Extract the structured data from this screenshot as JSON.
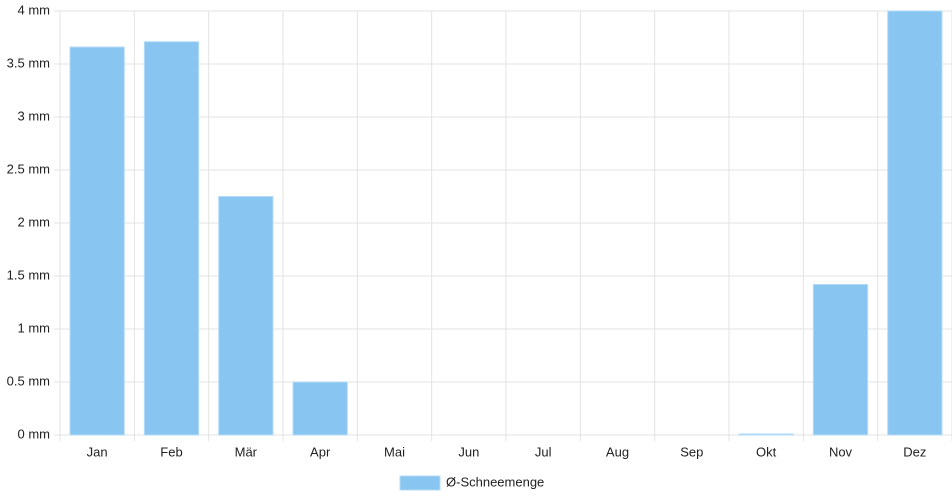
{
  "chart_data": {
    "type": "bar",
    "categories": [
      "Jan",
      "Feb",
      "Mär",
      "Apr",
      "Mai",
      "Jun",
      "Jul",
      "Aug",
      "Sep",
      "Okt",
      "Nov",
      "Dez"
    ],
    "series": [
      {
        "name": "Ø-Schneemenge",
        "color": "#88c5f1",
        "values": [
          3.66,
          3.71,
          2.25,
          0.5,
          0,
          0,
          0,
          0,
          0,
          0.01,
          1.42,
          4.0
        ]
      }
    ],
    "ylim": [
      0,
      4
    ],
    "yticks": [
      {
        "value": 0,
        "label": "0 mm"
      },
      {
        "value": 0.5,
        "label": "0.5 mm"
      },
      {
        "value": 1,
        "label": "1 mm"
      },
      {
        "value": 1.5,
        "label": "1.5 mm"
      },
      {
        "value": 2,
        "label": "2 mm"
      },
      {
        "value": 2.5,
        "label": "2.5 mm"
      },
      {
        "value": 3,
        "label": "3 mm"
      },
      {
        "value": 3.5,
        "label": "3.5 mm"
      },
      {
        "value": 4,
        "label": "4 mm"
      }
    ],
    "grid": true,
    "legend": "bottom"
  }
}
